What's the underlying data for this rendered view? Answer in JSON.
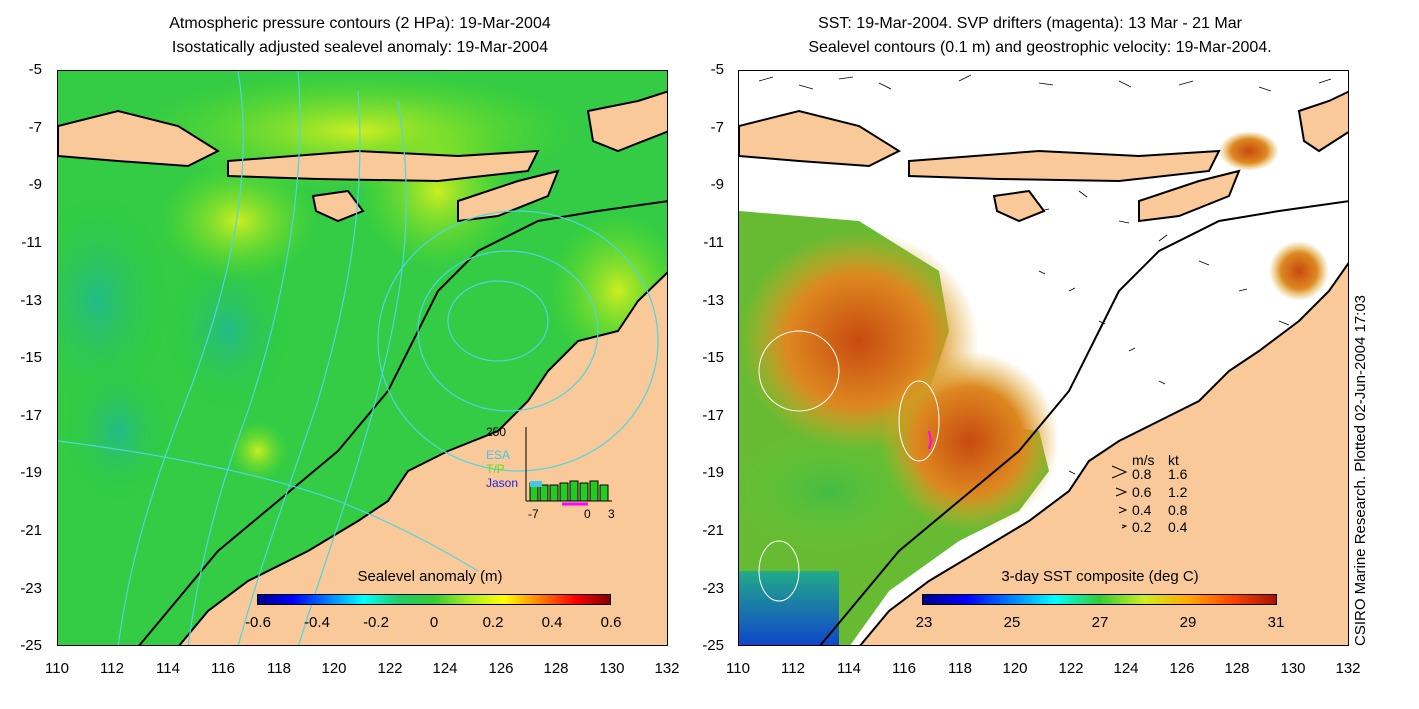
{
  "left_panel": {
    "title_line1": "Atmospheric pressure contours (2 HPa): 19-Mar-2004",
    "title_line2": "Isostatically adjusted sealevel anomaly: 19-Mar-2004",
    "colorbar_label": "Sealevel anomaly (m)",
    "colorbar_ticks": [
      "-0.6",
      "-0.4",
      "-0.2",
      "0",
      "0.2",
      "0.4",
      "0.6"
    ],
    "inset": {
      "top_value": "250",
      "missions": [
        "ESA",
        "T/P",
        "Jason"
      ],
      "mission_colors": [
        "#44c8e8",
        "#66dd22",
        "#2222dd"
      ],
      "x_ticks": [
        "-7",
        "0",
        "3"
      ]
    }
  },
  "right_panel": {
    "title_line1": "SST: 19-Mar-2004. SVP drifters (magenta): 13 Mar - 21 Mar",
    "title_line2": "Sealevel contours (0.1 m) and geostrophic velocity: 19-Mar-2004.",
    "colorbar_label": "3-day SST composite (deg C)",
    "colorbar_ticks": [
      "23",
      "25",
      "27",
      "29",
      "31"
    ],
    "velocity_legend": {
      "header_ms": "m/s",
      "header_kt": "kt",
      "rows": [
        {
          "ms": "0.8",
          "kt": "1.6"
        },
        {
          "ms": "0.6",
          "kt": "1.2"
        },
        {
          "ms": "0.4",
          "kt": "0.8"
        },
        {
          "ms": "0.2",
          "kt": "0.4"
        }
      ]
    }
  },
  "y_ticks": [
    "-5",
    "-7",
    "-9",
    "-11",
    "-13",
    "-15",
    "-17",
    "-19",
    "-21",
    "-23",
    "-25"
  ],
  "x_ticks": [
    "110",
    "112",
    "114",
    "116",
    "118",
    "120",
    "122",
    "124",
    "126",
    "128",
    "130",
    "132"
  ],
  "credit": "CSIRO Marine Research. Plotted 02-Jun-2004 17:03",
  "colors": {
    "land": "#f9c99a",
    "sea_green": "#33cc33",
    "contour": "#4fd6e0",
    "magenta": "#ff00ff"
  }
}
